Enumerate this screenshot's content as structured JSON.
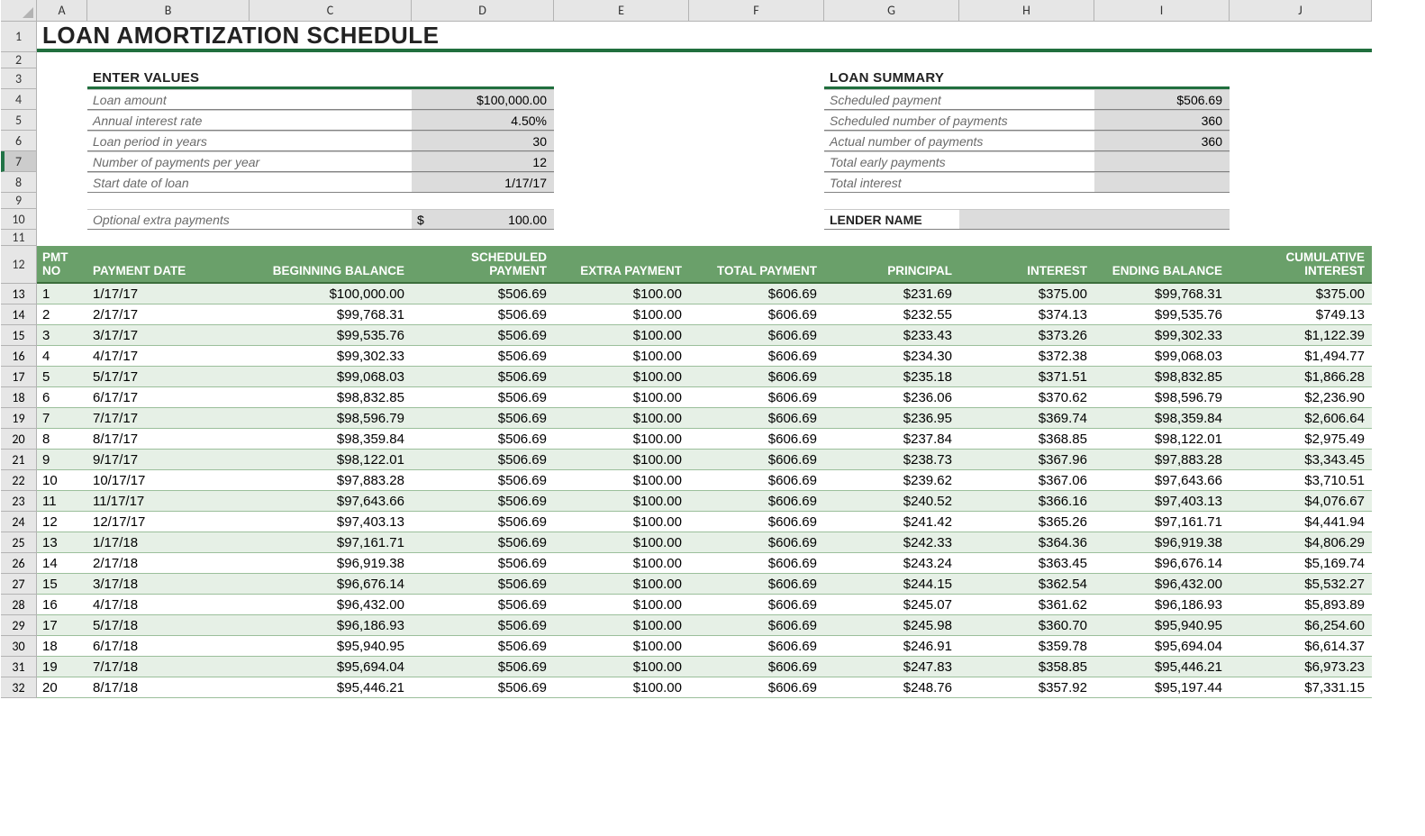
{
  "columns": [
    "A",
    "B",
    "C",
    "D",
    "E",
    "F",
    "G",
    "H",
    "I",
    "J"
  ],
  "active_row_header": "7",
  "title": "LOAN AMORTIZATION SCHEDULE",
  "enter_values": {
    "header": "ENTER VALUES",
    "rows": [
      {
        "label": "Loan amount",
        "value": "$100,000.00"
      },
      {
        "label": "Annual interest rate",
        "value": "4.50%"
      },
      {
        "label": "Loan period in years",
        "value": "30"
      },
      {
        "label": "Number of payments per year",
        "value": "12"
      },
      {
        "label": "Start date of loan",
        "value": "1/17/17"
      }
    ],
    "extra": {
      "label": "Optional extra payments",
      "prefix": "$",
      "value": "100.00"
    }
  },
  "loan_summary": {
    "header": "LOAN SUMMARY",
    "rows": [
      {
        "label": "Scheduled payment",
        "value": "$506.69"
      },
      {
        "label": "Scheduled number of payments",
        "value": "360"
      },
      {
        "label": "Actual number of payments",
        "value": "360"
      },
      {
        "label": "Total early payments",
        "value": ""
      },
      {
        "label": "Total interest",
        "value": ""
      }
    ],
    "lender_label": "LENDER NAME"
  },
  "amz_headers": [
    {
      "text": "PMT NO",
      "align": "left"
    },
    {
      "text": "PAYMENT DATE",
      "align": "left"
    },
    {
      "text": "BEGINNING BALANCE",
      "align": "right"
    },
    {
      "text": "SCHEDULED PAYMENT",
      "align": "right"
    },
    {
      "text": "EXTRA PAYMENT",
      "align": "right"
    },
    {
      "text": "TOTAL PAYMENT",
      "align": "right"
    },
    {
      "text": "PRINCIPAL",
      "align": "right"
    },
    {
      "text": "INTEREST",
      "align": "right"
    },
    {
      "text": "ENDING BALANCE",
      "align": "right"
    },
    {
      "text": "CUMULATIVE INTEREST",
      "align": "right"
    }
  ],
  "amz_rows": [
    {
      "row": 13,
      "no": "1",
      "date": "1/17/17",
      "beg": "$100,000.00",
      "sched": "$506.69",
      "extra": "$100.00",
      "total": "$606.69",
      "prin": "$231.69",
      "int": "$375.00",
      "end": "$99,768.31",
      "cum": "$375.00"
    },
    {
      "row": 14,
      "no": "2",
      "date": "2/17/17",
      "beg": "$99,768.31",
      "sched": "$506.69",
      "extra": "$100.00",
      "total": "$606.69",
      "prin": "$232.55",
      "int": "$374.13",
      "end": "$99,535.76",
      "cum": "$749.13"
    },
    {
      "row": 15,
      "no": "3",
      "date": "3/17/17",
      "beg": "$99,535.76",
      "sched": "$506.69",
      "extra": "$100.00",
      "total": "$606.69",
      "prin": "$233.43",
      "int": "$373.26",
      "end": "$99,302.33",
      "cum": "$1,122.39"
    },
    {
      "row": 16,
      "no": "4",
      "date": "4/17/17",
      "beg": "$99,302.33",
      "sched": "$506.69",
      "extra": "$100.00",
      "total": "$606.69",
      "prin": "$234.30",
      "int": "$372.38",
      "end": "$99,068.03",
      "cum": "$1,494.77"
    },
    {
      "row": 17,
      "no": "5",
      "date": "5/17/17",
      "beg": "$99,068.03",
      "sched": "$506.69",
      "extra": "$100.00",
      "total": "$606.69",
      "prin": "$235.18",
      "int": "$371.51",
      "end": "$98,832.85",
      "cum": "$1,866.28"
    },
    {
      "row": 18,
      "no": "6",
      "date": "6/17/17",
      "beg": "$98,832.85",
      "sched": "$506.69",
      "extra": "$100.00",
      "total": "$606.69",
      "prin": "$236.06",
      "int": "$370.62",
      "end": "$98,596.79",
      "cum": "$2,236.90"
    },
    {
      "row": 19,
      "no": "7",
      "date": "7/17/17",
      "beg": "$98,596.79",
      "sched": "$506.69",
      "extra": "$100.00",
      "total": "$606.69",
      "prin": "$236.95",
      "int": "$369.74",
      "end": "$98,359.84",
      "cum": "$2,606.64"
    },
    {
      "row": 20,
      "no": "8",
      "date": "8/17/17",
      "beg": "$98,359.84",
      "sched": "$506.69",
      "extra": "$100.00",
      "total": "$606.69",
      "prin": "$237.84",
      "int": "$368.85",
      "end": "$98,122.01",
      "cum": "$2,975.49"
    },
    {
      "row": 21,
      "no": "9",
      "date": "9/17/17",
      "beg": "$98,122.01",
      "sched": "$506.69",
      "extra": "$100.00",
      "total": "$606.69",
      "prin": "$238.73",
      "int": "$367.96",
      "end": "$97,883.28",
      "cum": "$3,343.45"
    },
    {
      "row": 22,
      "no": "10",
      "date": "10/17/17",
      "beg": "$97,883.28",
      "sched": "$506.69",
      "extra": "$100.00",
      "total": "$606.69",
      "prin": "$239.62",
      "int": "$367.06",
      "end": "$97,643.66",
      "cum": "$3,710.51"
    },
    {
      "row": 23,
      "no": "11",
      "date": "11/17/17",
      "beg": "$97,643.66",
      "sched": "$506.69",
      "extra": "$100.00",
      "total": "$606.69",
      "prin": "$240.52",
      "int": "$366.16",
      "end": "$97,403.13",
      "cum": "$4,076.67"
    },
    {
      "row": 24,
      "no": "12",
      "date": "12/17/17",
      "beg": "$97,403.13",
      "sched": "$506.69",
      "extra": "$100.00",
      "total": "$606.69",
      "prin": "$241.42",
      "int": "$365.26",
      "end": "$97,161.71",
      "cum": "$4,441.94"
    },
    {
      "row": 25,
      "no": "13",
      "date": "1/17/18",
      "beg": "$97,161.71",
      "sched": "$506.69",
      "extra": "$100.00",
      "total": "$606.69",
      "prin": "$242.33",
      "int": "$364.36",
      "end": "$96,919.38",
      "cum": "$4,806.29"
    },
    {
      "row": 26,
      "no": "14",
      "date": "2/17/18",
      "beg": "$96,919.38",
      "sched": "$506.69",
      "extra": "$100.00",
      "total": "$606.69",
      "prin": "$243.24",
      "int": "$363.45",
      "end": "$96,676.14",
      "cum": "$5,169.74"
    },
    {
      "row": 27,
      "no": "15",
      "date": "3/17/18",
      "beg": "$96,676.14",
      "sched": "$506.69",
      "extra": "$100.00",
      "total": "$606.69",
      "prin": "$244.15",
      "int": "$362.54",
      "end": "$96,432.00",
      "cum": "$5,532.27"
    },
    {
      "row": 28,
      "no": "16",
      "date": "4/17/18",
      "beg": "$96,432.00",
      "sched": "$506.69",
      "extra": "$100.00",
      "total": "$606.69",
      "prin": "$245.07",
      "int": "$361.62",
      "end": "$96,186.93",
      "cum": "$5,893.89"
    },
    {
      "row": 29,
      "no": "17",
      "date": "5/17/18",
      "beg": "$96,186.93",
      "sched": "$506.69",
      "extra": "$100.00",
      "total": "$606.69",
      "prin": "$245.98",
      "int": "$360.70",
      "end": "$95,940.95",
      "cum": "$6,254.60"
    },
    {
      "row": 30,
      "no": "18",
      "date": "6/17/18",
      "beg": "$95,940.95",
      "sched": "$506.69",
      "extra": "$100.00",
      "total": "$606.69",
      "prin": "$246.91",
      "int": "$359.78",
      "end": "$95,694.04",
      "cum": "$6,614.37"
    },
    {
      "row": 31,
      "no": "19",
      "date": "7/17/18",
      "beg": "$95,694.04",
      "sched": "$506.69",
      "extra": "$100.00",
      "total": "$606.69",
      "prin": "$247.83",
      "int": "$358.85",
      "end": "$95,446.21",
      "cum": "$6,973.23"
    },
    {
      "row": 32,
      "no": "20",
      "date": "8/17/18",
      "beg": "$95,446.21",
      "sched": "$506.69",
      "extra": "$100.00",
      "total": "$606.69",
      "prin": "$248.76",
      "int": "$357.92",
      "end": "$95,197.44",
      "cum": "$7,331.15"
    }
  ],
  "colors": {
    "header_bg": "#6aa06a",
    "row_odd_bg": "#e6f0e6",
    "accent_green": "#216f3e",
    "grey_fill": "#dcdcdc"
  }
}
